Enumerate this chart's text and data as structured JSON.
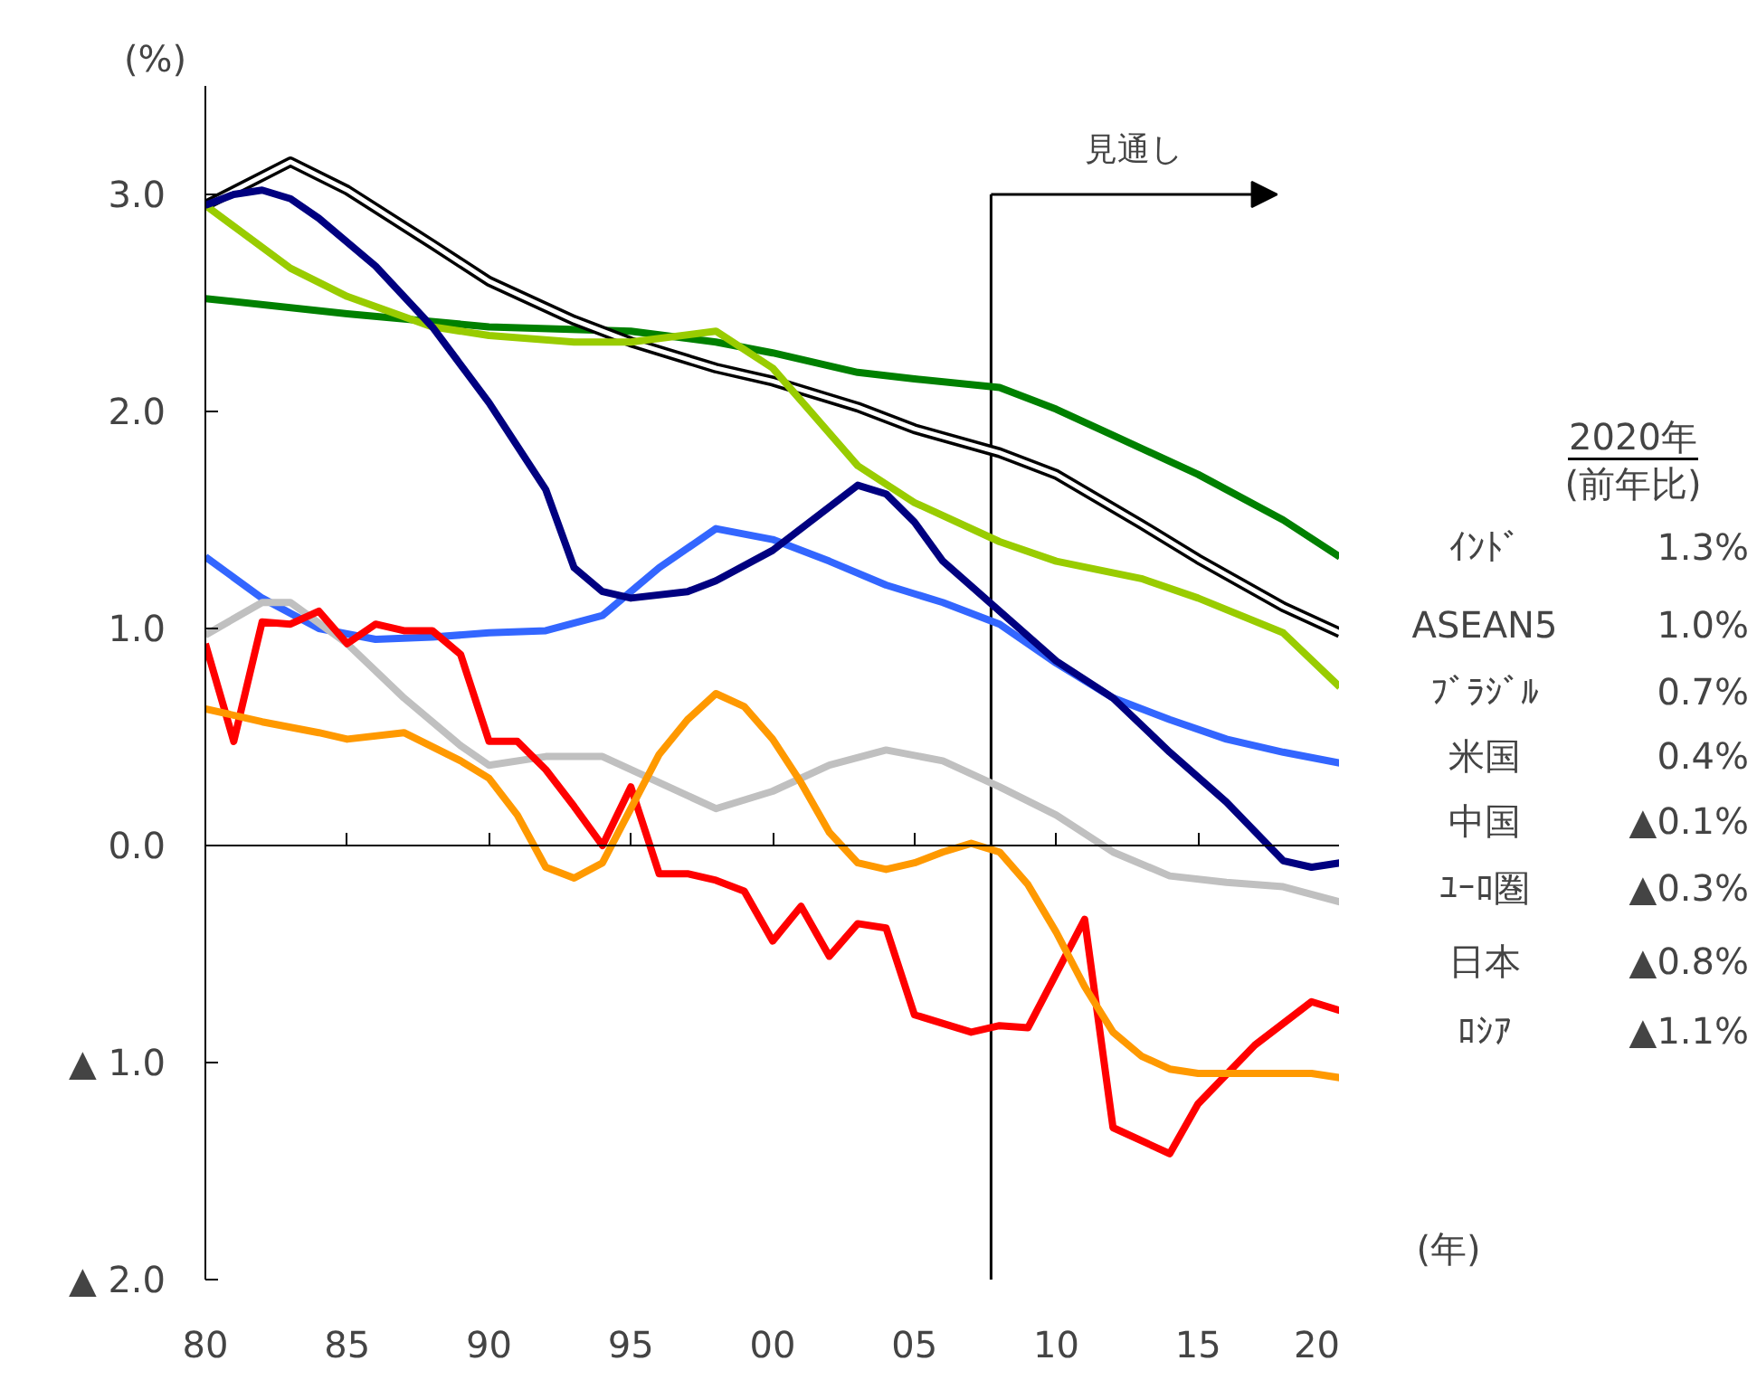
{
  "chart_data": {
    "type": "line",
    "xlim": [
      1980,
      2020
    ],
    "ylim": [
      -2.0,
      3.5
    ],
    "xticks": [
      {
        "value": 1980,
        "label": "80"
      },
      {
        "value": 1985,
        "label": "85"
      },
      {
        "value": 1990,
        "label": "90"
      },
      {
        "value": 1995,
        "label": "95"
      },
      {
        "value": 2000,
        "label": "00"
      },
      {
        "value": 2005,
        "label": "05"
      },
      {
        "value": 2010,
        "label": "10"
      },
      {
        "value": 2015,
        "label": "15"
      },
      {
        "value": 2020,
        "label": "20"
      }
    ],
    "yticks": [
      {
        "value": 3,
        "label": "3.0"
      },
      {
        "value": 2,
        "label": "2.0"
      },
      {
        "value": 1,
        "label": "1.0"
      },
      {
        "value": 0,
        "label": "0.0"
      },
      {
        "value": -1,
        "label": "▲ 1.0"
      },
      {
        "value": -2,
        "label": "▲ 2.0"
      }
    ],
    "xlabel": "(年)",
    "ylabel": "(%)",
    "legend": false,
    "grid": false,
    "marker": "none",
    "line_style": "solid",
    "ref_lines": [
      {
        "axis": "x",
        "value": 2007.7,
        "label": "見通し"
      },
      {
        "axis": "y",
        "value": 0
      }
    ],
    "annotations": [
      "2020年",
      "(前年比)",
      "1.3%",
      "1.0%",
      "0.7%",
      "0.4%",
      "▲0.1%",
      "▲0.3%",
      "▲0.8%",
      "▲1.1%"
    ],
    "series": [
      {
        "name": "ｲﾝﾄﾞ",
        "color": "#008000",
        "x": [
          1980,
          1985,
          1990,
          1995,
          1998,
          2000,
          2003,
          2005,
          2008,
          2010,
          2012,
          2015,
          2018,
          2020
        ],
        "values": [
          2.52,
          2.45,
          2.39,
          2.37,
          2.32,
          2.27,
          2.18,
          2.15,
          2.11,
          2.01,
          1.89,
          1.71,
          1.5,
          1.33
        ]
      },
      {
        "name": "ASEAN5",
        "color": "#000000",
        "x": [
          1980,
          1983,
          1985,
          1988,
          1990,
          1993,
          1995,
          1998,
          2000,
          2003,
          2005,
          2008,
          2010,
          2013,
          2015,
          2018,
          2020
        ],
        "values": [
          2.95,
          3.15,
          3.02,
          2.77,
          2.6,
          2.42,
          2.32,
          2.2,
          2.14,
          2.02,
          1.92,
          1.81,
          1.71,
          1.48,
          1.32,
          1.1,
          0.98
        ]
      },
      {
        "name": "ﾌﾞﾗｼﾞﾙ",
        "color": "#99cc00",
        "x": [
          1980,
          1983,
          1985,
          1988,
          1990,
          1993,
          1995,
          1998,
          2000,
          2003,
          2005,
          2008,
          2010,
          2013,
          2015,
          2018,
          2020
        ],
        "values": [
          2.95,
          2.66,
          2.53,
          2.39,
          2.35,
          2.32,
          2.32,
          2.37,
          2.2,
          1.75,
          1.58,
          1.4,
          1.31,
          1.23,
          1.14,
          0.98,
          0.73
        ]
      },
      {
        "name": "米国",
        "color": "#3366ff",
        "x": [
          1980,
          1982,
          1984,
          1986,
          1988,
          1990,
          1992,
          1994,
          1996,
          1998,
          2000,
          2002,
          2004,
          2006,
          2008,
          2010,
          2012,
          2014,
          2016,
          2018,
          2020
        ],
        "values": [
          1.33,
          1.14,
          1.0,
          0.95,
          0.96,
          0.98,
          0.99,
          1.06,
          1.28,
          1.46,
          1.41,
          1.31,
          1.2,
          1.12,
          1.02,
          0.84,
          0.68,
          0.58,
          0.49,
          0.43,
          0.38
        ]
      },
      {
        "name": "中国",
        "color": "#000080",
        "x": [
          1980,
          1981,
          1982,
          1983,
          1984,
          1986,
          1988,
          1990,
          1992,
          1993,
          1994,
          1995,
          1997,
          1998,
          2000,
          2003,
          2004,
          2005,
          2006,
          2008,
          2010,
          2012,
          2014,
          2016,
          2018,
          2019,
          2020
        ],
        "values": [
          2.95,
          3.0,
          3.02,
          2.98,
          2.89,
          2.67,
          2.39,
          2.04,
          1.64,
          1.28,
          1.17,
          1.14,
          1.17,
          1.22,
          1.36,
          1.66,
          1.62,
          1.49,
          1.31,
          1.08,
          0.85,
          0.68,
          0.43,
          0.2,
          -0.07,
          -0.1,
          -0.08
        ]
      },
      {
        "name": "ﾕｰﾛ圏",
        "color": "#c0c0c0",
        "x": [
          1980,
          1982,
          1983,
          1985,
          1987,
          1989,
          1990,
          1992,
          1994,
          1996,
          1998,
          2000,
          2002,
          2004,
          2006,
          2008,
          2010,
          2012,
          2014,
          2016,
          2018,
          2020
        ],
        "values": [
          0.97,
          1.12,
          1.12,
          0.93,
          0.68,
          0.46,
          0.37,
          0.41,
          0.41,
          0.29,
          0.17,
          0.25,
          0.37,
          0.44,
          0.39,
          0.27,
          0.14,
          -0.03,
          -0.14,
          -0.17,
          -0.19,
          -0.26
        ]
      },
      {
        "name": "日本",
        "color": "#ff0000",
        "x": [
          1980,
          1981,
          1982,
          1983,
          1984,
          1985,
          1986,
          1987,
          1988,
          1989,
          1990,
          1991,
          1992,
          1993,
          1994,
          1995,
          1996,
          1997,
          1998,
          1999,
          2000,
          2001,
          2002,
          2003,
          2004,
          2005,
          2007,
          2008,
          2009,
          2011,
          2012,
          2014,
          2015,
          2017,
          2019,
          2020
        ],
        "values": [
          0.93,
          0.48,
          1.03,
          1.02,
          1.08,
          0.93,
          1.02,
          0.99,
          0.99,
          0.88,
          0.48,
          0.48,
          0.35,
          0.18,
          0.0,
          0.27,
          -0.13,
          -0.13,
          -0.16,
          -0.21,
          -0.44,
          -0.28,
          -0.51,
          -0.36,
          -0.38,
          -0.78,
          -0.86,
          -0.83,
          -0.84,
          -0.34,
          -1.3,
          -1.42,
          -1.19,
          -0.92,
          -0.72,
          -0.76
        ]
      },
      {
        "name": "ﾛｼｱ",
        "color": "#ff9900",
        "x": [
          1980,
          1982,
          1984,
          1985,
          1987,
          1989,
          1990,
          1991,
          1992,
          1993,
          1994,
          1995,
          1996,
          1997,
          1998,
          1999,
          2000,
          2001,
          2002,
          2003,
          2004,
          2005,
          2006,
          2007,
          2008,
          2009,
          2010,
          2011,
          2012,
          2013,
          2014,
          2015,
          2017,
          2019,
          2020
        ],
        "values": [
          0.63,
          0.57,
          0.52,
          0.49,
          0.52,
          0.39,
          0.31,
          0.14,
          -0.1,
          -0.15,
          -0.08,
          0.17,
          0.42,
          0.58,
          0.7,
          0.64,
          0.49,
          0.29,
          0.06,
          -0.08,
          -0.11,
          -0.08,
          -0.03,
          0.01,
          -0.03,
          -0.18,
          -0.4,
          -0.65,
          -0.86,
          -0.97,
          -1.03,
          -1.05,
          -1.05,
          -1.05,
          -1.07
        ]
      }
    ]
  }
}
